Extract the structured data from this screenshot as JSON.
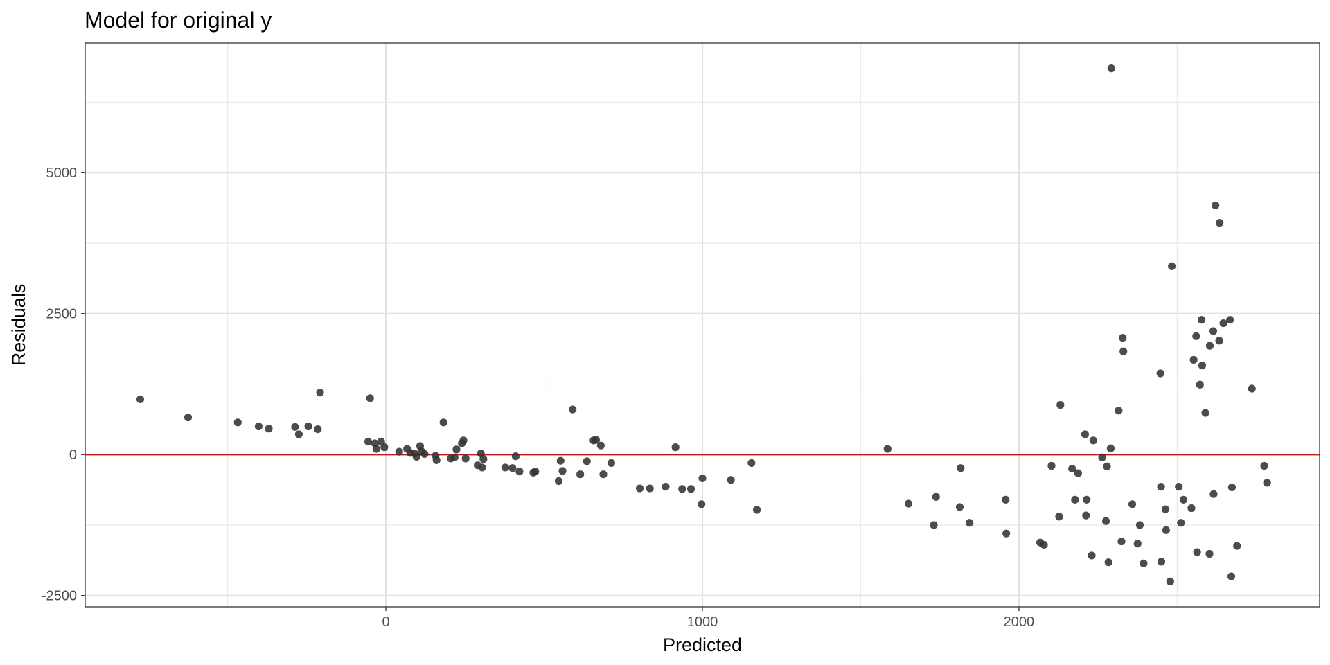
{
  "chart_data": {
    "type": "scatter",
    "title": "Model for original y",
    "xlabel": "Predicted",
    "ylabel": "Residuals",
    "xlim": [
      -950,
      2950
    ],
    "ylim": [
      -2700,
      7300
    ],
    "x_ticks": [
      0,
      1000,
      2000
    ],
    "x_minor_ticks": [
      -500,
      500,
      1500,
      2500
    ],
    "y_ticks": [
      -2500,
      0,
      2500,
      5000
    ],
    "y_minor_ticks": [
      -1250,
      1250,
      3750,
      6250
    ],
    "grid": true,
    "reference_line": {
      "y": 0,
      "color": "#ff0000"
    },
    "point_color": "#333333",
    "points": [
      [
        -776,
        980
      ],
      [
        -625,
        660
      ],
      [
        -468,
        570
      ],
      [
        -402,
        500
      ],
      [
        -370,
        460
      ],
      [
        -287,
        490
      ],
      [
        -275,
        360
      ],
      [
        -245,
        500
      ],
      [
        -215,
        450
      ],
      [
        -208,
        1100
      ],
      [
        -56,
        230
      ],
      [
        -50,
        1000
      ],
      [
        -35,
        200
      ],
      [
        -30,
        100
      ],
      [
        -15,
        230
      ],
      [
        -5,
        130
      ],
      [
        42,
        50
      ],
      [
        67,
        100
      ],
      [
        77,
        30
      ],
      [
        90,
        20
      ],
      [
        97,
        -40
      ],
      [
        108,
        150
      ],
      [
        112,
        60
      ],
      [
        122,
        10
      ],
      [
        157,
        -20
      ],
      [
        160,
        -100
      ],
      [
        182,
        570
      ],
      [
        205,
        -70
      ],
      [
        217,
        -50
      ],
      [
        223,
        90
      ],
      [
        240,
        200
      ],
      [
        245,
        250
      ],
      [
        252,
        -70
      ],
      [
        290,
        -190
      ],
      [
        300,
        20
      ],
      [
        304,
        -230
      ],
      [
        308,
        -80
      ],
      [
        377,
        -230
      ],
      [
        400,
        -240
      ],
      [
        410,
        -30
      ],
      [
        422,
        -300
      ],
      [
        466,
        -320
      ],
      [
        472,
        -300
      ],
      [
        546,
        -470
      ],
      [
        552,
        -110
      ],
      [
        558,
        -290
      ],
      [
        590,
        800
      ],
      [
        614,
        -350
      ],
      [
        635,
        -120
      ],
      [
        656,
        250
      ],
      [
        664,
        260
      ],
      [
        679,
        160
      ],
      [
        687,
        -350
      ],
      [
        712,
        -150
      ],
      [
        802,
        -600
      ],
      [
        834,
        -600
      ],
      [
        884,
        -570
      ],
      [
        915,
        130
      ],
      [
        936,
        -610
      ],
      [
        964,
        -610
      ],
      [
        997,
        -880
      ],
      [
        1000,
        -420
      ],
      [
        1090,
        -450
      ],
      [
        1155,
        -150
      ],
      [
        1172,
        -980
      ],
      [
        1585,
        100
      ],
      [
        1651,
        -870
      ],
      [
        1731,
        -1250
      ],
      [
        1738,
        -750
      ],
      [
        1813,
        -930
      ],
      [
        1816,
        -240
      ],
      [
        1844,
        -1210
      ],
      [
        1958,
        -800
      ],
      [
        1960,
        -1400
      ],
      [
        2067,
        -1560
      ],
      [
        2079,
        -1600
      ],
      [
        2103,
        -200
      ],
      [
        2127,
        -1100
      ],
      [
        2131,
        880
      ],
      [
        2168,
        -250
      ],
      [
        2177,
        -800
      ],
      [
        2187,
        -330
      ],
      [
        2209,
        360
      ],
      [
        2212,
        -1080
      ],
      [
        2214,
        -800
      ],
      [
        2230,
        -1790
      ],
      [
        2235,
        250
      ],
      [
        2263,
        -50
      ],
      [
        2275,
        -1180
      ],
      [
        2278,
        -210
      ],
      [
        2283,
        -1910
      ],
      [
        2290,
        110
      ],
      [
        2292,
        6850
      ],
      [
        2315,
        780
      ],
      [
        2324,
        -1540
      ],
      [
        2328,
        2070
      ],
      [
        2330,
        1830
      ],
      [
        2358,
        -880
      ],
      [
        2375,
        -1580
      ],
      [
        2382,
        -1250
      ],
      [
        2394,
        -1930
      ],
      [
        2447,
        1440
      ],
      [
        2449,
        -570
      ],
      [
        2450,
        -1900
      ],
      [
        2463,
        -970
      ],
      [
        2465,
        -1340
      ],
      [
        2478,
        -2250
      ],
      [
        2483,
        3340
      ],
      [
        2505,
        -570
      ],
      [
        2512,
        -1210
      ],
      [
        2520,
        -800
      ],
      [
        2545,
        -950
      ],
      [
        2552,
        1680
      ],
      [
        2560,
        2100
      ],
      [
        2563,
        -1730
      ],
      [
        2572,
        1240
      ],
      [
        2577,
        2390
      ],
      [
        2579,
        1580
      ],
      [
        2589,
        740
      ],
      [
        2602,
        -1760
      ],
      [
        2603,
        1930
      ],
      [
        2614,
        2190
      ],
      [
        2615,
        -700
      ],
      [
        2621,
        4420
      ],
      [
        2633,
        2020
      ],
      [
        2634,
        4110
      ],
      [
        2646,
        2330
      ],
      [
        2667,
        2390
      ],
      [
        2671,
        -2160
      ],
      [
        2673,
        -580
      ],
      [
        2689,
        -1620
      ],
      [
        2736,
        1170
      ],
      [
        2775,
        -200
      ],
      [
        2784,
        -500
      ]
    ]
  }
}
